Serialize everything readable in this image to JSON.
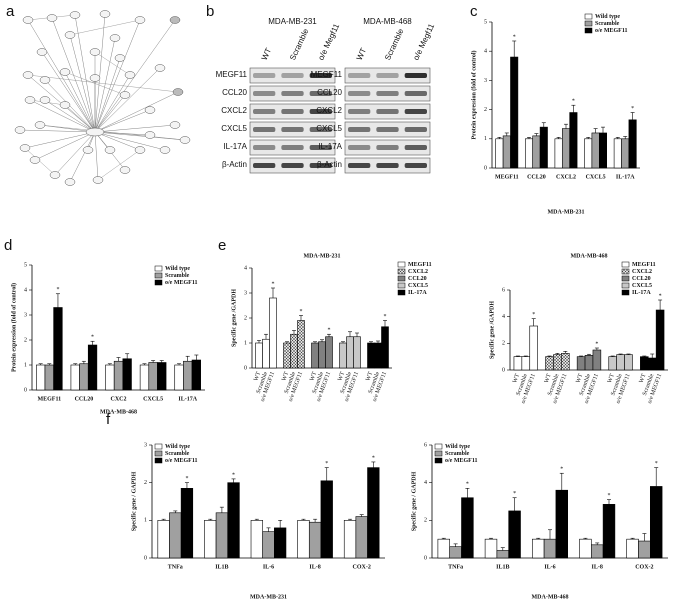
{
  "panels": [
    "a",
    "b",
    "c",
    "d",
    "e",
    "f"
  ],
  "blot": {
    "cell_lines": [
      "MDA-MB-231",
      "MDA-MB-468"
    ],
    "lanes": [
      "WT",
      "Scramble",
      "o/e Megf11"
    ],
    "proteins": [
      "MEGF11",
      "CCL20",
      "CXCL2",
      "CXCL5",
      "IL-17A",
      "β-Actin"
    ]
  },
  "chart_data": [
    {
      "type": "bar",
      "ylabel": "Protein expression (fold of control)",
      "xlabel": "MDA-MB-231",
      "categories": [
        "MEGF11",
        "CCL20",
        "CXCL2",
        "CXCL5",
        "IL-17A"
      ],
      "series": [
        {
          "name": "Wild type",
          "color": "#ffffff",
          "values": [
            1,
            1,
            1,
            1,
            1
          ],
          "errors": [
            0.05,
            0.05,
            0.05,
            0.05,
            0.05
          ]
        },
        {
          "name": "Scramble",
          "color": "#a0a0a0",
          "values": [
            1.1,
            1.1,
            1.35,
            1.2,
            1.0
          ],
          "errors": [
            0.1,
            0.08,
            0.15,
            0.15,
            0.08
          ]
        },
        {
          "name": "o/e MEGF11",
          "color": "#000000",
          "values": [
            3.8,
            1.4,
            1.9,
            1.2,
            1.65
          ],
          "errors": [
            0.55,
            0.15,
            0.25,
            0.2,
            0.25
          ]
        }
      ],
      "ylim": [
        0,
        5
      ],
      "yticks": [
        0,
        1,
        2,
        3,
        4,
        5
      ],
      "legend": "upper right",
      "annotations": [
        {
          "text": "*",
          "series": 2,
          "index": 0
        },
        {
          "text": "*",
          "series": 2,
          "index": 2
        },
        {
          "text": "*",
          "series": 2,
          "index": 4
        }
      ]
    },
    {
      "type": "bar",
      "ylabel": "Protein expression (fold of control)",
      "xlabel": "MDA-MB-468",
      "categories": [
        "MEGF11",
        "CCL20",
        "CXC2",
        "CXCL5",
        "IL-17A"
      ],
      "series": [
        {
          "name": "Wild type",
          "color": "#ffffff",
          "values": [
            1,
            1,
            1,
            1,
            1
          ],
          "errors": [
            0.05,
            0.05,
            0.05,
            0.05,
            0.05
          ]
        },
        {
          "name": "Scramble",
          "color": "#a0a0a0",
          "values": [
            1.0,
            1.05,
            1.15,
            1.1,
            1.15
          ],
          "errors": [
            0.05,
            0.1,
            0.15,
            0.08,
            0.2
          ]
        },
        {
          "name": "o/e MEGF11",
          "color": "#000000",
          "values": [
            3.3,
            1.8,
            1.25,
            1.1,
            1.2
          ],
          "errors": [
            0.55,
            0.15,
            0.2,
            0.08,
            0.2
          ]
        }
      ],
      "ylim": [
        0,
        5
      ],
      "yticks": [
        0,
        1,
        2,
        3,
        4,
        5
      ],
      "legend": "upper right",
      "annotations": [
        {
          "text": "*",
          "series": 2,
          "index": 0
        },
        {
          "text": "*",
          "series": 2,
          "index": 1
        }
      ]
    },
    {
      "type": "bar",
      "title": "MDA-MB-231",
      "ylabel": "Specific gene /GAPDH",
      "clusters": "series",
      "categories": [
        "WT",
        "Scramble",
        "o/e MEGF11"
      ],
      "series": [
        {
          "name": "MEGF11",
          "color": "#ffffff",
          "values": [
            1,
            1.15,
            2.8
          ],
          "errors": [
            0.1,
            0.2,
            0.4
          ]
        },
        {
          "name": "CXCL2",
          "color": "#d0d0d0",
          "hatch": true,
          "values": [
            1,
            1.35,
            1.9
          ],
          "errors": [
            0.05,
            0.15,
            0.2
          ]
        },
        {
          "name": "CCL20",
          "color": "#808080",
          "values": [
            1,
            1.05,
            1.25
          ],
          "errors": [
            0.05,
            0.08,
            0.1
          ]
        },
        {
          "name": "CXCL5",
          "color": "#c8c8c8",
          "values": [
            1,
            1.25,
            1.25
          ],
          "errors": [
            0.05,
            0.2,
            0.15
          ]
        },
        {
          "name": "IL-17A",
          "color": "#000000",
          "values": [
            1,
            1.0,
            1.65
          ],
          "errors": [
            0.05,
            0.08,
            0.25
          ]
        }
      ],
      "ylim": [
        0,
        4
      ],
      "yticks": [
        0,
        1,
        2,
        3,
        4
      ],
      "legend": "outside right",
      "annotations": [
        {
          "text": "*",
          "series": 0,
          "index": 2
        },
        {
          "text": "*",
          "series": 1,
          "index": 2
        },
        {
          "text": "*",
          "series": 2,
          "index": 2
        },
        {
          "text": "*",
          "series": 4,
          "index": 2
        }
      ]
    },
    {
      "type": "bar",
      "title": "MDA-MB-468",
      "ylabel": "Specific gene /GAPDH",
      "clusters": "series",
      "categories": [
        "WT",
        "Scramble",
        "o/e MEGF11"
      ],
      "series": [
        {
          "name": "MEGF11",
          "color": "#ffffff",
          "values": [
            1,
            1,
            3.3
          ],
          "errors": [
            0.05,
            0.05,
            0.55
          ]
        },
        {
          "name": "CXCL2",
          "color": "#d0d0d0",
          "hatch": true,
          "values": [
            1,
            1.15,
            1.25
          ],
          "errors": [
            0.05,
            0.1,
            0.15
          ]
        },
        {
          "name": "CCL20",
          "color": "#808080",
          "values": [
            1,
            1.1,
            1.5
          ],
          "errors": [
            0.05,
            0.08,
            0.15
          ]
        },
        {
          "name": "CXCL5",
          "color": "#c8c8c8",
          "values": [
            1,
            1.15,
            1.15
          ],
          "errors": [
            0.05,
            0.05,
            0.05
          ]
        },
        {
          "name": "IL-17A",
          "color": "#000000",
          "values": [
            1,
            0.9,
            4.5
          ],
          "errors": [
            0.05,
            0.3,
            0.75
          ]
        }
      ],
      "ylim": [
        0,
        6
      ],
      "yticks": [
        0,
        2,
        4,
        6
      ],
      "legend": "upper right",
      "annotations": [
        {
          "text": "*",
          "series": 0,
          "index": 2
        },
        {
          "text": "*",
          "series": 2,
          "index": 2
        },
        {
          "text": "*",
          "series": 4,
          "index": 2
        }
      ]
    },
    {
      "type": "bar",
      "ylabel": "Specific gene / GAPDH",
      "xlabel": "MDA-MB-231",
      "categories": [
        "TNFa",
        "IL1B",
        "IL-6",
        "IL-8",
        "COX-2"
      ],
      "series": [
        {
          "name": "Wild type",
          "color": "#ffffff",
          "values": [
            1,
            1,
            1,
            1,
            1
          ],
          "errors": [
            0.03,
            0.03,
            0.03,
            0.03,
            0.03
          ]
        },
        {
          "name": "Scramble",
          "color": "#a0a0a0",
          "values": [
            1.2,
            1.2,
            0.7,
            0.95,
            1.1
          ],
          "errors": [
            0.05,
            0.15,
            0.1,
            0.08,
            0.05
          ]
        },
        {
          "name": "o/e MEGF11",
          "color": "#000000",
          "values": [
            1.85,
            2.0,
            0.8,
            2.05,
            2.4
          ],
          "errors": [
            0.15,
            0.1,
            0.2,
            0.35,
            0.15
          ]
        }
      ],
      "ylim": [
        0,
        3
      ],
      "yticks": [
        0,
        1,
        2,
        3
      ],
      "legend": "upper left",
      "annotations": [
        {
          "text": "*",
          "series": 2,
          "index": 0
        },
        {
          "text": "*",
          "series": 2,
          "index": 1
        },
        {
          "text": "*",
          "series": 2,
          "index": 3
        },
        {
          "text": "*",
          "series": 2,
          "index": 4
        }
      ]
    },
    {
      "type": "bar",
      "ylabel": "Specific gene / GAPDH",
      "xlabel": "MDA-MB-468",
      "categories": [
        "TNFa",
        "IL1B",
        "IL-6",
        "IL-8",
        "COX-2"
      ],
      "series": [
        {
          "name": "Wild type",
          "color": "#ffffff",
          "values": [
            1,
            1,
            1,
            1,
            1
          ],
          "errors": [
            0.05,
            0.05,
            0.05,
            0.05,
            0.05
          ]
        },
        {
          "name": "Scramble",
          "color": "#a0a0a0",
          "values": [
            0.6,
            0.4,
            1.0,
            0.7,
            0.9
          ],
          "errors": [
            0.15,
            0.15,
            0.5,
            0.1,
            0.4
          ]
        },
        {
          "name": "o/e MEGF11",
          "color": "#000000",
          "values": [
            3.2,
            2.5,
            3.6,
            2.85,
            3.8
          ],
          "errors": [
            0.5,
            0.7,
            0.9,
            0.25,
            1.0
          ]
        }
      ],
      "ylim": [
        0,
        6
      ],
      "yticks": [
        0,
        2,
        4,
        6
      ],
      "legend": "upper left",
      "annotations": [
        {
          "text": "*",
          "series": 2,
          "index": 0
        },
        {
          "text": "*",
          "series": 2,
          "index": 1
        },
        {
          "text": "*",
          "series": 2,
          "index": 2
        },
        {
          "text": "*",
          "series": 2,
          "index": 3
        },
        {
          "text": "*",
          "series": 2,
          "index": 4
        }
      ]
    }
  ]
}
